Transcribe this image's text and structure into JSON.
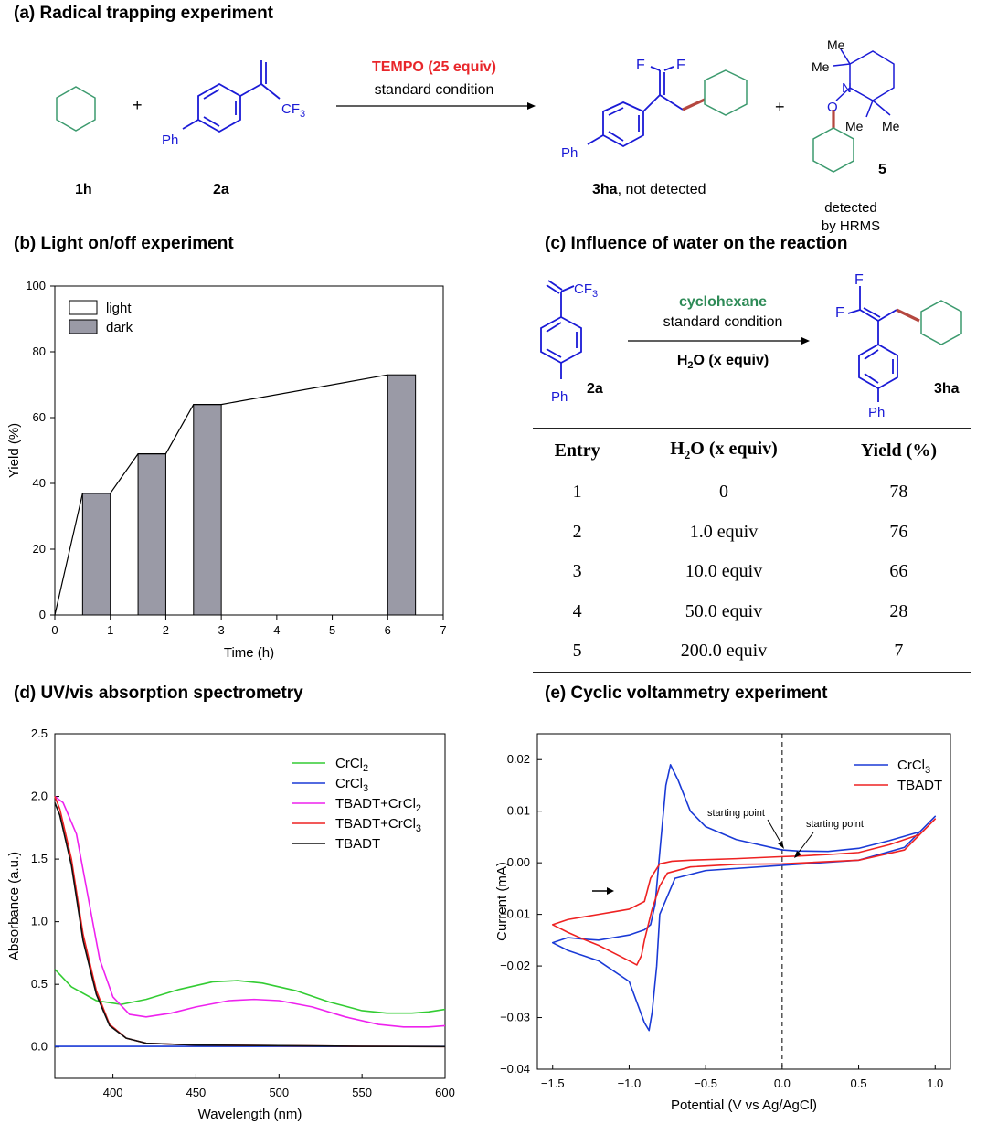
{
  "panel_a": {
    "title": "(a) Radical trapping experiment",
    "label_1h": "1h",
    "label_2a": "2a",
    "plus": "+",
    "ph": "Ph",
    "cf3": "CF3",
    "arrow_top": "TEMPO (25 equiv)",
    "arrow_bottom": "standard condition",
    "f": "F",
    "label_3ha": "3ha",
    "not_detected": ", not detected",
    "label_5": "5",
    "me": "Me",
    "n": "N",
    "o": "O",
    "detected_line1": "detected",
    "detected_line2": "by HRMS",
    "accent_red": "#e8262a",
    "ring_green": "#3c9a6e",
    "mol_blue": "#1a1ad6",
    "bond_red": "#b5473f"
  },
  "panel_b": {
    "title": "(b) Light on/off experiment"
  },
  "panel_c": {
    "title": "(c) Influence of water on the reaction",
    "label_2a": "2a",
    "label_3ha": "3ha",
    "ph": "Ph",
    "cf3": "CF3",
    "f": "F",
    "arrow_top": "cyclohexane",
    "arrow_mid": "standard condition",
    "arrow_bottom": "H2O (x equiv)",
    "reagent_green": "#2e8b57",
    "table": {
      "headers": [
        "Entry",
        "H2O (x equiv)",
        "Yield (%)"
      ],
      "rows": [
        [
          "1",
          "0",
          "78"
        ],
        [
          "2",
          "1.0 equiv",
          "76"
        ],
        [
          "3",
          "10.0 equiv",
          "66"
        ],
        [
          "4",
          "50.0 equiv",
          "28"
        ],
        [
          "5",
          "200.0 equiv",
          "7"
        ]
      ]
    }
  },
  "panel_d": {
    "title": "(d) UV/vis absorption spectrometry"
  },
  "panel_e": {
    "title": "(e) Cyclic voltammetry experiment",
    "annotation_1": "starting point",
    "annotation_2": "starting point"
  },
  "chart_data": [
    {
      "id": "b",
      "type": "bar",
      "xlabel": "Time (h)",
      "ylabel": "Yield (%)",
      "xlim": [
        0,
        7
      ],
      "ylim": [
        0,
        100
      ],
      "xticks": [
        "0",
        "1",
        "2",
        "3",
        "4",
        "5",
        "6",
        "7"
      ],
      "yticks": [
        "0",
        "20",
        "40",
        "60",
        "80",
        "100"
      ],
      "legend": [
        "light",
        "dark"
      ],
      "legend_position": "top-left",
      "dark_bars": [
        {
          "x0": 0.5,
          "x1": 1.0,
          "y": 37
        },
        {
          "x0": 1.5,
          "x1": 2.0,
          "y": 49
        },
        {
          "x0": 2.5,
          "x1": 3.0,
          "y": 64
        },
        {
          "x0": 6.0,
          "x1": 6.5,
          "y": 73
        }
      ],
      "light_line": [
        [
          0,
          0
        ],
        [
          0.5,
          37
        ],
        [
          1.0,
          37
        ],
        [
          1.5,
          49
        ],
        [
          2.0,
          49
        ],
        [
          2.5,
          64
        ],
        [
          3.0,
          64
        ],
        [
          6.0,
          73
        ]
      ],
      "colors": {
        "dark": "#9a9aa6",
        "light": "#ffffff"
      }
    },
    {
      "id": "d",
      "type": "line",
      "xlabel": "Wavelength (nm)",
      "ylabel": "Absorbance (a.u.)",
      "xlim": [
        365,
        600
      ],
      "ylim": [
        -0.25,
        2.5
      ],
      "xticks": [
        "400",
        "450",
        "500",
        "550",
        "600"
      ],
      "yticks": [
        "0.0",
        "0.5",
        "1.0",
        "1.5",
        "2.0",
        "2.5"
      ],
      "legend_position": "top-right",
      "series": [
        {
          "name": "CrCl",
          "sub": "2",
          "color": "#33cc33",
          "x": [
            365,
            375,
            390,
            405,
            420,
            440,
            460,
            475,
            490,
            510,
            530,
            550,
            565,
            580,
            590,
            600
          ],
          "y": [
            0.62,
            0.48,
            0.37,
            0.34,
            0.38,
            0.46,
            0.52,
            0.53,
            0.51,
            0.45,
            0.36,
            0.29,
            0.27,
            0.27,
            0.28,
            0.3
          ]
        },
        {
          "name": "CrCl",
          "sub": "3",
          "color": "#1a3ad6",
          "x": [
            365,
            400,
            450,
            500,
            550,
            600
          ],
          "y": [
            0.005,
            0.005,
            0.005,
            0.005,
            0.004,
            0.004
          ]
        },
        {
          "name": "TBADT+CrCl",
          "sub": "2",
          "color": "#ee22ee",
          "x": [
            365,
            370,
            378,
            385,
            392,
            400,
            410,
            420,
            435,
            450,
            470,
            485,
            500,
            520,
            540,
            560,
            575,
            590,
            600
          ],
          "y": [
            2.0,
            1.95,
            1.7,
            1.2,
            0.7,
            0.4,
            0.26,
            0.24,
            0.27,
            0.32,
            0.37,
            0.38,
            0.37,
            0.32,
            0.24,
            0.18,
            0.16,
            0.16,
            0.17
          ]
        },
        {
          "name": "TBADT+CrCl",
          "sub": "3",
          "color": "#ee2222",
          "x": [
            365,
            368,
            375,
            382,
            390,
            398,
            408,
            420,
            450,
            500,
            550,
            600
          ],
          "y": [
            2.0,
            1.9,
            1.5,
            0.9,
            0.45,
            0.18,
            0.07,
            0.03,
            0.015,
            0.01,
            0.005,
            0.003
          ]
        },
        {
          "name": "TBADT",
          "sub": "",
          "color": "#111111",
          "x": [
            365,
            368,
            375,
            382,
            390,
            398,
            408,
            420,
            450,
            500,
            550,
            600
          ],
          "y": [
            1.95,
            1.85,
            1.45,
            0.85,
            0.42,
            0.17,
            0.07,
            0.03,
            0.015,
            0.01,
            0.005,
            0.003
          ]
        }
      ]
    },
    {
      "id": "e",
      "type": "line",
      "xlabel": "Potential (V vs Ag/AgCl)",
      "ylabel": "Current (mA)",
      "xlim": [
        -1.6,
        1.1
      ],
      "ylim": [
        -0.04,
        0.025
      ],
      "xticks": [
        "-1.5",
        "-1.0",
        "-0.5",
        "0.0",
        "0.5",
        "1.0"
      ],
      "yticks": [
        "0.02",
        "0.01",
        "0.00",
        "-0.01",
        "-0.02",
        "-0.03",
        "-0.04"
      ],
      "legend_position": "top-right",
      "reference_line_x": 0.0,
      "series": [
        {
          "name": "CrCl",
          "sub": "3",
          "color": "#1a3ad6",
          "x": [
            0.0,
            -0.3,
            -0.5,
            -0.6,
            -0.68,
            -0.73,
            -0.76,
            -0.8,
            -0.83,
            -0.86,
            -0.9,
            -1.0,
            -1.1,
            -1.2,
            -1.3,
            -1.4,
            -1.5,
            -1.4,
            -1.2,
            -1.0,
            -0.95,
            -0.9,
            -0.87,
            -0.85,
            -0.82,
            -0.8,
            -0.7,
            -0.5,
            0.0,
            0.5,
            0.8,
            1.0,
            0.9,
            0.7,
            0.5,
            0.3,
            0.1,
            0.0
          ],
          "y": [
            0.0025,
            0.0045,
            0.007,
            0.01,
            0.016,
            0.019,
            0.015,
            0.002,
            -0.008,
            -0.012,
            -0.013,
            -0.014,
            -0.0145,
            -0.015,
            -0.0148,
            -0.0145,
            -0.0155,
            -0.017,
            -0.019,
            -0.023,
            -0.027,
            -0.031,
            -0.0325,
            -0.029,
            -0.02,
            -0.01,
            -0.003,
            -0.0015,
            -0.0005,
            0.0005,
            0.003,
            0.009,
            0.006,
            0.0043,
            0.0028,
            0.0022,
            0.0023,
            0.0025
          ]
        },
        {
          "name": "TBADT",
          "sub": "",
          "color": "#ee2222",
          "x": [
            0.0,
            -0.3,
            -0.6,
            -0.72,
            -0.8,
            -0.86,
            -0.9,
            -1.0,
            -1.1,
            -1.2,
            -1.3,
            -1.4,
            -1.5,
            -1.4,
            -1.3,
            -1.2,
            -1.1,
            -1.0,
            -0.95,
            -0.92,
            -0.9,
            -0.85,
            -0.8,
            -0.75,
            -0.6,
            -0.3,
            0.0,
            0.5,
            0.8,
            1.0,
            0.9,
            0.7,
            0.5,
            0.3,
            0.1,
            0.0
          ],
          "y": [
            0.0012,
            0.0008,
            0.0005,
            0.0003,
            -0.0002,
            -0.003,
            -0.0075,
            -0.009,
            -0.0095,
            -0.01,
            -0.0105,
            -0.011,
            -0.012,
            -0.0135,
            -0.0148,
            -0.016,
            -0.0175,
            -0.019,
            -0.0198,
            -0.018,
            -0.015,
            -0.009,
            -0.0045,
            -0.002,
            -0.0008,
            -0.0003,
            -0.0002,
            0.0005,
            0.0025,
            0.0085,
            0.0055,
            0.0035,
            0.002,
            0.0016,
            0.0013,
            0.0012
          ]
        }
      ]
    }
  ]
}
